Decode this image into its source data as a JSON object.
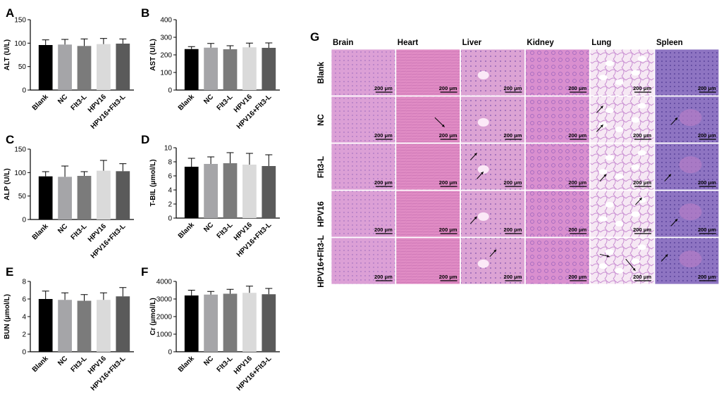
{
  "colors": {
    "Blank": "#000000",
    "NC": "#a5a5a8",
    "Flt3-L": "#7b7b7b",
    "HPV16": "#dadada",
    "HPV16+Flt3-L": "#5a5a5a",
    "tissue_pink": "#dc9bd3",
    "tissue_purple": "#b98ad1",
    "spleen_purple": "#8a6fc0"
  },
  "chart_data": [
    {
      "type": "bar",
      "panel": "A",
      "categories": [
        "Blank",
        "NC",
        "Flt3-L",
        "HPV16",
        "HPV16+Flt3-L"
      ],
      "values": [
        96,
        97,
        94,
        98,
        99
      ],
      "errors": [
        11,
        11,
        15,
        12,
        10
      ],
      "ylabel": "ALT (U/L)",
      "ylim": [
        0,
        150
      ],
      "yticks": [
        0,
        50,
        100,
        150
      ]
    },
    {
      "type": "bar",
      "panel": "B",
      "categories": [
        "Blank",
        "NC",
        "Flt3-L",
        "HPV16",
        "HPV16+Flt3-L"
      ],
      "values": [
        233,
        241,
        232,
        243,
        240
      ],
      "errors": [
        14,
        24,
        20,
        24,
        28
      ],
      "ylabel": "AST (U/L)",
      "ylim": [
        0,
        400
      ],
      "yticks": [
        0,
        100,
        200,
        300,
        400
      ]
    },
    {
      "type": "bar",
      "panel": "C",
      "categories": [
        "Blank",
        "NC",
        "Flt3-L",
        "HPV16",
        "HPV16+Flt3-L"
      ],
      "values": [
        92,
        91,
        93,
        104,
        103
      ],
      "errors": [
        10,
        23,
        9,
        22,
        16
      ],
      "ylabel": "ALP (U/L)",
      "ylim": [
        0,
        150
      ],
      "yticks": [
        0,
        50,
        100,
        150
      ]
    },
    {
      "type": "bar",
      "panel": "D",
      "categories": [
        "Blank",
        "NC",
        "Flt3-L",
        "HPV16",
        "HPV16+Flt3-L"
      ],
      "values": [
        7.3,
        7.7,
        7.8,
        7.6,
        7.4
      ],
      "errors": [
        1.2,
        1.0,
        1.5,
        1.6,
        1.6
      ],
      "ylabel": "T-BIL (μmol/L)",
      "ylim": [
        0,
        10
      ],
      "yticks": [
        0,
        2,
        4,
        6,
        8,
        10
      ]
    },
    {
      "type": "bar",
      "panel": "E",
      "categories": [
        "Blank",
        "NC",
        "Flt3-L",
        "HPV16",
        "HPV16+Flt3-L"
      ],
      "values": [
        6.0,
        5.9,
        5.8,
        5.9,
        6.3
      ],
      "errors": [
        0.9,
        0.8,
        0.7,
        0.8,
        1.0
      ],
      "ylabel": "BUN (μmol/L)",
      "ylim": [
        0,
        8
      ],
      "yticks": [
        0,
        2,
        4,
        6,
        8
      ]
    },
    {
      "type": "bar",
      "panel": "F",
      "categories": [
        "Blank",
        "NC",
        "Flt3-L",
        "HPV16",
        "HPV16+Flt3-L"
      ],
      "values": [
        3200,
        3250,
        3300,
        3350,
        3270
      ],
      "errors": [
        300,
        180,
        250,
        380,
        330
      ],
      "ylabel": "Cr (μmol/L)",
      "ylim": [
        0,
        4000
      ],
      "yticks": [
        0,
        1000,
        2000,
        3000,
        4000
      ]
    }
  ],
  "histology": {
    "panel": "G",
    "columns": [
      "Brain",
      "Heart",
      "Liver",
      "Kidney",
      "Lung",
      "Spleen"
    ],
    "rows": [
      "Blank",
      "NC",
      "Flt3-L",
      "HPV16",
      "HPV16+Flt3-L"
    ],
    "scale_bar": "200 μm"
  }
}
